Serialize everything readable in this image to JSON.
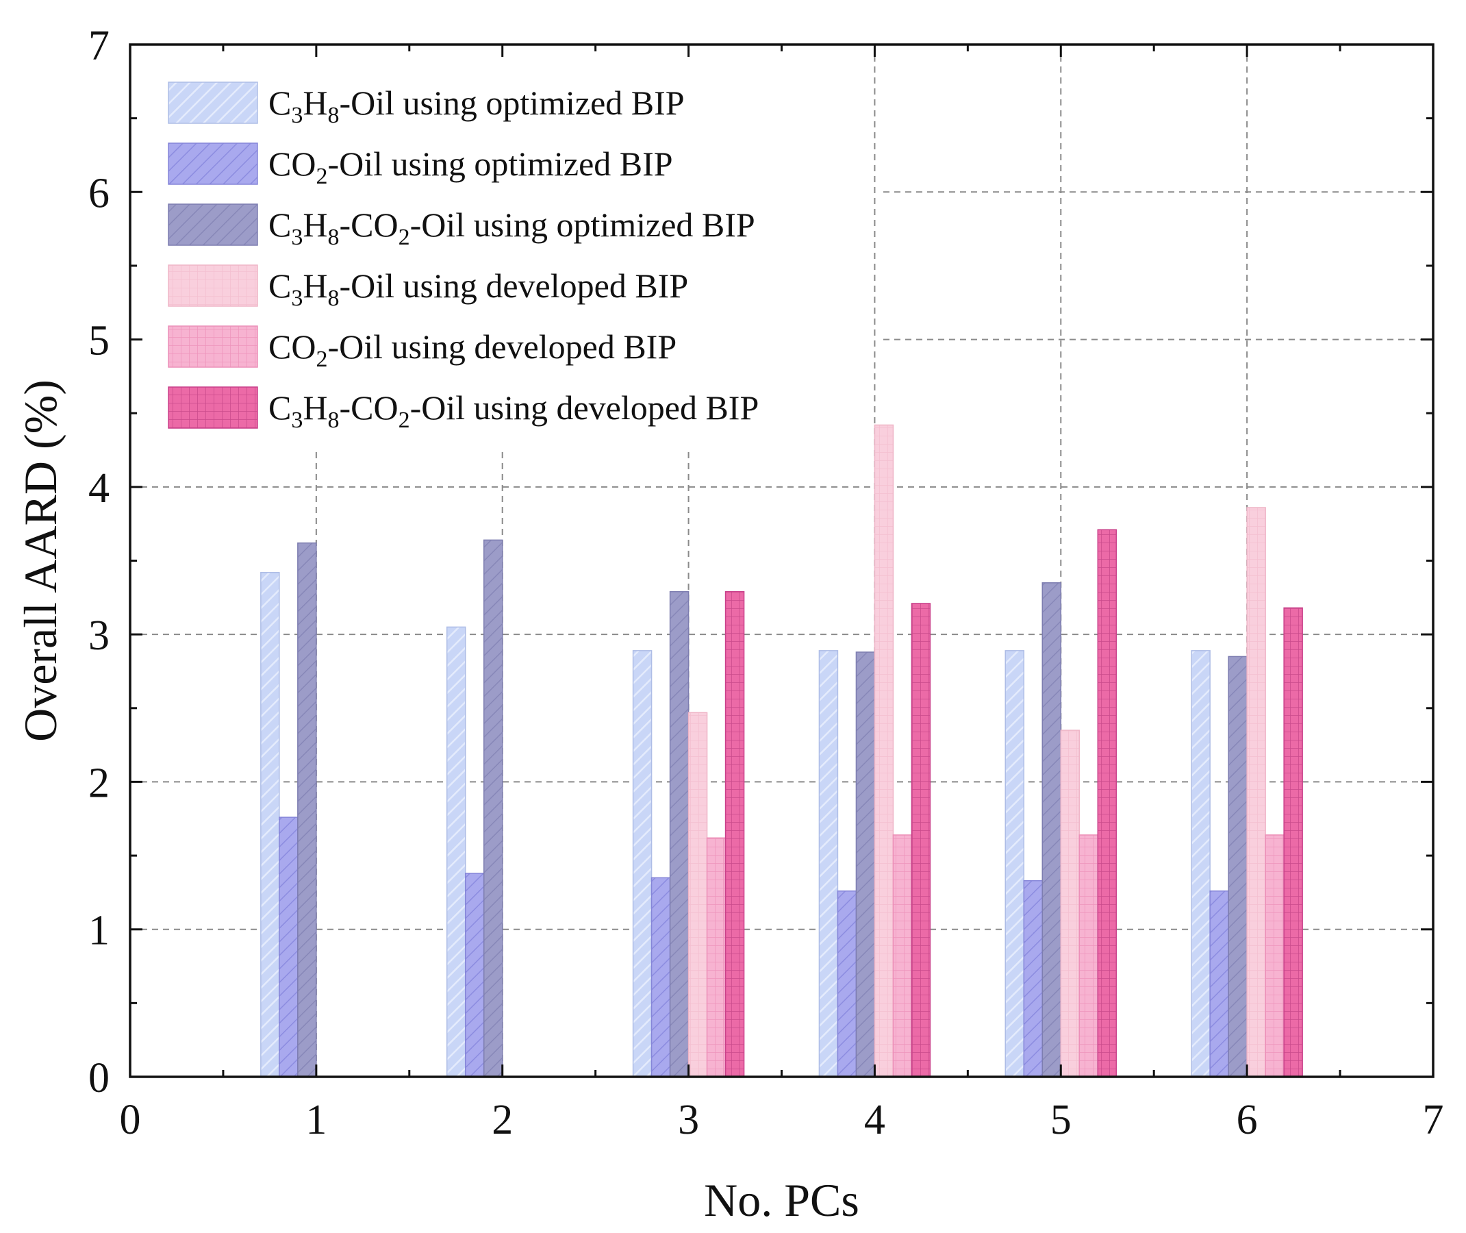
{
  "chart_data": {
    "type": "bar",
    "xlabel": "No. PCs",
    "ylabel": "Overall AARD (%)",
    "xlim": [
      0,
      7
    ],
    "ylim": [
      0,
      7
    ],
    "xticks": [
      "0",
      "1",
      "2",
      "3",
      "4",
      "5",
      "6",
      "7"
    ],
    "yticks": [
      "0",
      "1",
      "2",
      "3",
      "4",
      "5",
      "6",
      "7"
    ],
    "grid": true,
    "legend_position": "top-left",
    "categories": [
      1,
      2,
      3,
      4,
      5,
      6
    ],
    "series": [
      {
        "name": "C3H8-Oil using optimized BIP",
        "label_parts": [
          "C",
          "3",
          "H",
          "8",
          "-Oil using optimized BIP"
        ],
        "color": "#c9d6f7",
        "edge": "#aebde6",
        "pattern": "hatch-light",
        "values": [
          3.42,
          3.05,
          2.89,
          2.89,
          2.89,
          2.89
        ]
      },
      {
        "name": "CO2-Oil using optimized BIP",
        "label_parts": [
          "CO",
          "2",
          "-Oil using optimized BIP"
        ],
        "color": "#a9a9ee",
        "edge": "#8585d8",
        "pattern": "hatch-medium",
        "values": [
          1.76,
          1.38,
          1.35,
          1.26,
          1.33,
          1.26
        ]
      },
      {
        "name": "C3H8-CO2-Oil using optimized BIP",
        "label_parts": [
          "C",
          "3",
          "H",
          "8",
          "-CO",
          "2",
          "-Oil using optimized BIP"
        ],
        "color": "#9c9cc8",
        "edge": "#7d7db0",
        "pattern": "hatch-dark",
        "values": [
          3.62,
          3.64,
          3.29,
          2.88,
          3.35,
          2.85
        ]
      },
      {
        "name": "C3H8-Oil using developed BIP",
        "label_parts": [
          "C",
          "3",
          "H",
          "8",
          "-Oil using developed BIP"
        ],
        "color": "#f9cfdd",
        "edge": "#efb5c7",
        "pattern": "grid-light",
        "values": [
          null,
          null,
          2.47,
          4.42,
          2.35,
          3.86
        ]
      },
      {
        "name": "CO2-Oil using developed BIP",
        "label_parts": [
          "CO",
          "2",
          "-Oil using developed BIP"
        ],
        "color": "#f7b3d1",
        "edge": "#ec8fb8",
        "pattern": "grid-medium",
        "values": [
          null,
          null,
          1.62,
          1.64,
          1.64,
          1.64
        ]
      },
      {
        "name": "C3H8-CO2-Oil using developed BIP",
        "label_parts": [
          "C",
          "3",
          "H",
          "8",
          "-CO",
          "2",
          "-Oil using developed BIP"
        ],
        "color": "#ec6aa7",
        "edge": "#c9408a",
        "pattern": "grid-dark",
        "values": [
          null,
          null,
          3.29,
          3.21,
          3.71,
          3.18
        ]
      }
    ]
  }
}
